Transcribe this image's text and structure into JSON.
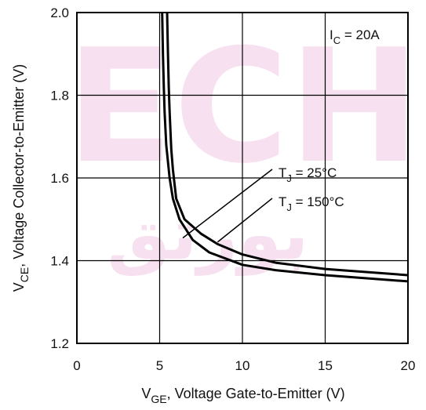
{
  "chart_data": {
    "type": "line",
    "xlabel": {
      "main": "V",
      "sub": "GE",
      "rest": ", Voltage Gate-to-Emitter (V)"
    },
    "ylabel": {
      "main": "V",
      "sub": "CE",
      "rest": ", Voltage Collector-to-Emitter (V)"
    },
    "xlim": [
      0,
      20
    ],
    "ylim": [
      1.2,
      2.0
    ],
    "x_ticks": [
      "0",
      "5",
      "10",
      "15",
      "20"
    ],
    "y_ticks": [
      "1.2",
      "1.4",
      "1.6",
      "1.8",
      "2.0"
    ],
    "grid": true,
    "condition": {
      "main": "I",
      "sub": "C",
      "rest": " = 20A"
    },
    "series": [
      {
        "name": "T_J = 25°C",
        "label": {
          "main": "T",
          "sub": "J",
          "rest": " = 25°C"
        },
        "x": [
          5.15,
          5.2,
          5.25,
          5.3,
          5.4,
          5.6,
          5.8,
          6.2,
          7,
          8,
          10,
          12,
          15,
          20
        ],
        "y": [
          2.0,
          1.9,
          1.82,
          1.76,
          1.68,
          1.6,
          1.55,
          1.5,
          1.45,
          1.42,
          1.39,
          1.377,
          1.365,
          1.35
        ]
      },
      {
        "name": "T_J = 150°C",
        "label": {
          "main": "T",
          "sub": "J",
          "rest": " = 150°C"
        },
        "x": [
          5.45,
          5.5,
          5.55,
          5.6,
          5.7,
          5.8,
          6.0,
          6.5,
          7.5,
          8.5,
          10,
          12,
          15,
          20
        ],
        "y": [
          2.0,
          1.9,
          1.82,
          1.76,
          1.67,
          1.62,
          1.55,
          1.5,
          1.465,
          1.44,
          1.415,
          1.395,
          1.38,
          1.365
        ]
      }
    ]
  },
  "watermark": {
    "text_top": "ECH",
    "text_mid": "بورتق"
  }
}
